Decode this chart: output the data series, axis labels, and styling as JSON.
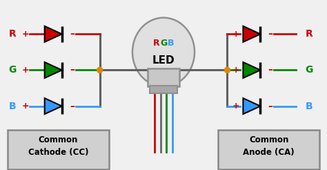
{
  "background_color": "#f0f0f0",
  "led_body_color": "#c8c8c8",
  "led_base_color": "#a8a8a8",
  "led_lens_color": "#e0e0e0",
  "pin_colors": [
    "#cc0000",
    "#666666",
    "#008800",
    "#3399ff"
  ],
  "diode_colors": [
    "#cc0000",
    "#008800",
    "#3399ff"
  ],
  "cc_label_line1": "Common",
  "cc_label_line2": "Cathode (CC)",
  "ca_label_line1": "Common",
  "ca_label_line2": "Anode (CA)",
  "rgb_R_color": "#cc0000",
  "rgb_G_color": "#008800",
  "rgb_B_color": "#3399ff",
  "led_text": "LED",
  "label_R": "R",
  "label_G": "G",
  "label_B": "B",
  "node_color": "#dd8800",
  "bus_color": "#606060",
  "box_face": "#d0d0d0",
  "box_edge": "#888888",
  "figsize": [
    4.74,
    2.46
  ],
  "dpi": 100
}
